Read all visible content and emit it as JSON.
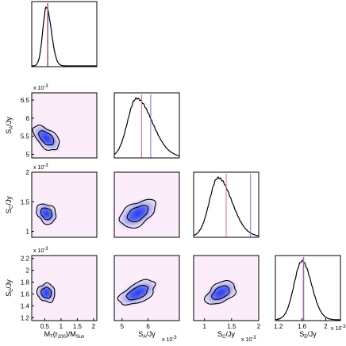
{
  "figure": {
    "panels": [
      {
        "id": "hist-MT",
        "row": 0,
        "col": 0,
        "type": "hist"
      },
      {
        "id": "hist-SA",
        "row": 1,
        "col": 1,
        "type": "hist"
      },
      {
        "id": "hist-SC",
        "row": 2,
        "col": 2,
        "type": "hist"
      },
      {
        "id": "hist-SE",
        "row": 3,
        "col": 3,
        "type": "hist"
      },
      {
        "id": "contour-SA-MT",
        "row": 1,
        "col": 0,
        "type": "contour"
      },
      {
        "id": "contour-SC-MT",
        "row": 2,
        "col": 0,
        "type": "contour"
      },
      {
        "id": "contour-SC-SA",
        "row": 2,
        "col": 1,
        "type": "contour"
      },
      {
        "id": "contour-SE-MT",
        "row": 3,
        "col": 0,
        "type": "contour"
      },
      {
        "id": "contour-SE-SA",
        "row": 3,
        "col": 1,
        "type": "contour"
      },
      {
        "id": "contour-SE-SC",
        "row": 3,
        "col": 2,
        "type": "contour"
      }
    ]
  },
  "chart_data": {
    "type": "corner",
    "parameters": [
      {
        "name": "MT",
        "label_main": "M",
        "label_sub": "T",
        "label_paren": "(r",
        "label_paren_sub": "200",
        "label_tail": ")/M",
        "label_tail_sub": "Sun",
        "ticks": [
          "0.5",
          "1",
          "1.5",
          "2"
        ],
        "range": [
          0.1,
          2.1
        ],
        "exponent": ""
      },
      {
        "name": "SA",
        "label_main": "S",
        "label_sub": "A",
        "label_tail": "/Jy",
        "ticks": [
          "5",
          "6"
        ],
        "range": [
          4.7,
          7.2
        ],
        "exponent": "x 10",
        "exponent_power": "-3",
        "y_ticks": [
          "5",
          "5.5",
          "6",
          "6.5"
        ],
        "y_range": [
          4.9,
          6.7
        ]
      },
      {
        "name": "SC",
        "label_main": "S",
        "label_sub": "C",
        "label_tail": "/Jy",
        "ticks": [
          "1",
          "1.5",
          "2"
        ],
        "range": [
          0.8,
          2.0
        ],
        "exponent": "x 10",
        "exponent_power": "-3",
        "y_ticks": [
          "1",
          "1.5",
          "2"
        ],
        "y_range": [
          0.9,
          2.0
        ]
      },
      {
        "name": "SE",
        "label_main": "S",
        "label_sub": "E",
        "label_tail": "/Jy",
        "ticks": [
          "1.2",
          "1.6",
          "2"
        ],
        "range": [
          1.15,
          2.25
        ],
        "exponent": "x 10",
        "exponent_power": "-3",
        "y_ticks": [
          "1.2",
          "1.4",
          "1.6",
          "1.8",
          "2",
          "2.2"
        ],
        "y_range": [
          1.15,
          2.25
        ]
      }
    ],
    "histograms": [
      {
        "param": "MT",
        "peak": 0.55,
        "width": 0.12,
        "skew": 0.25,
        "red_line": 0.58,
        "blue_line": 0.6
      },
      {
        "param": "SA",
        "peak": 5.55,
        "width": 0.4,
        "skew": 0.5,
        "red_line": 5.75,
        "blue_line": 6.1
      },
      {
        "param": "SC",
        "peak": 1.25,
        "width": 0.18,
        "skew": 0.4,
        "red_line": 1.4,
        "blue_line": 1.85
      },
      {
        "param": "SE",
        "peak": 1.6,
        "width": 0.14,
        "skew": 0.15,
        "red_line": 1.62,
        "blue_line": 1.63
      }
    ],
    "joint": [
      {
        "x": "MT",
        "y": "SA",
        "cx": 0.55,
        "cy": 5.45,
        "sx": 0.14,
        "sy": 0.35,
        "rho": 0.4
      },
      {
        "x": "MT",
        "y": "SC",
        "cx": 0.55,
        "cy": 1.3,
        "sx": 0.14,
        "sy": 0.15,
        "rho": 0.45
      },
      {
        "x": "SA",
        "y": "SC",
        "cx": 5.6,
        "cy": 1.3,
        "sx": 0.4,
        "sy": 0.15,
        "rho": 0.7
      },
      {
        "x": "MT",
        "y": "SE",
        "cx": 0.55,
        "cy": 1.62,
        "sx": 0.14,
        "sy": 0.13,
        "rho": 0.4
      },
      {
        "x": "SA",
        "y": "SE",
        "cx": 5.6,
        "cy": 1.62,
        "sx": 0.4,
        "sy": 0.13,
        "rho": 0.7
      },
      {
        "x": "SC",
        "y": "SE",
        "cx": 1.3,
        "cy": 1.62,
        "sx": 0.16,
        "sy": 0.13,
        "rho": 0.65
      }
    ],
    "colors": {
      "density_high": "#2a3cf0",
      "density_low": "#f6e8f4",
      "panel_bg": "#fbeefa",
      "red_line": "#e07070",
      "blue_line": "#7070e0"
    }
  }
}
